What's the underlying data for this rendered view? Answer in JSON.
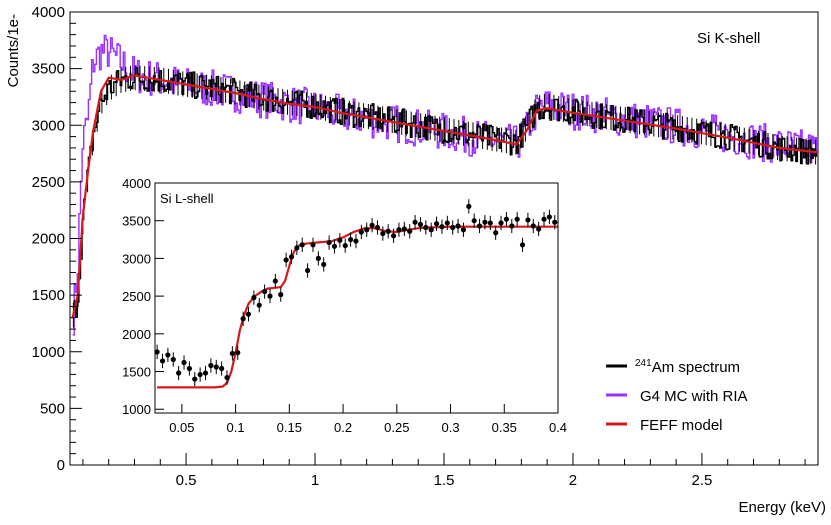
{
  "chart_data": [
    {
      "type": "line",
      "xlabel": "Energy (keV)",
      "ylabel": "Counts/1e-",
      "xlim": [
        0.05,
        2.95
      ],
      "ylim": [
        0,
        4000
      ],
      "x_ticks": [
        0.5,
        1,
        1.5,
        2,
        2.5
      ],
      "x_tick_labels": [
        "0.5",
        "1",
        "1.5",
        "2",
        "2.5"
      ],
      "y_ticks": [
        0,
        500,
        1000,
        1500,
        2000,
        2500,
        3000,
        3500,
        4000
      ],
      "y_tick_labels": [
        "0",
        "500",
        "1000",
        "1500",
        "2000",
        "2500",
        "3000",
        "3500",
        "4000"
      ],
      "annotation": "Si K-shell",
      "legend_position": "bottom-right",
      "legend": [
        {
          "label_sup": "241",
          "label": "Am spectrum",
          "color": "#000000"
        },
        {
          "label_sup": "",
          "label": "G4 MC with RIA",
          "color": "#9b30ff"
        },
        {
          "label_sup": "",
          "label": "FEFF model",
          "color": "#d7191c"
        }
      ],
      "series": [
        {
          "color": "#000000",
          "style": "histogram",
          "x": [
            0.06,
            0.08,
            0.1,
            0.12,
            0.14,
            0.17,
            0.2,
            0.25,
            0.3,
            0.4,
            0.5,
            0.6,
            0.7,
            0.8,
            0.9,
            1.0,
            1.1,
            1.2,
            1.3,
            1.4,
            1.5,
            1.6,
            1.7,
            1.78,
            1.82,
            1.86,
            1.9,
            2.0,
            2.2,
            2.4,
            2.6,
            2.8,
            2.95
          ],
          "values": [
            1300,
            1450,
            2150,
            2550,
            2900,
            3200,
            3320,
            3400,
            3420,
            3400,
            3360,
            3330,
            3290,
            3240,
            3200,
            3170,
            3120,
            3080,
            3040,
            3000,
            2960,
            2920,
            2880,
            2850,
            2980,
            3150,
            3170,
            3120,
            3050,
            2980,
            2900,
            2800,
            2760
          ]
        },
        {
          "color": "#9b30ff",
          "style": "histogram",
          "x": [
            0.06,
            0.08,
            0.1,
            0.12,
            0.14,
            0.17,
            0.2,
            0.25,
            0.3,
            0.4,
            0.5,
            0.6,
            0.7,
            0.8,
            0.9,
            1.0,
            1.1,
            1.2,
            1.3,
            1.4,
            1.5,
            1.6,
            1.7,
            1.78,
            1.82,
            1.86,
            1.9,
            2.0,
            2.2,
            2.4,
            2.6,
            2.8,
            2.95
          ],
          "values": [
            1250,
            1700,
            2850,
            3050,
            3550,
            3650,
            3650,
            3550,
            3450,
            3400,
            3350,
            3320,
            3280,
            3230,
            3190,
            3150,
            3100,
            3060,
            3020,
            2980,
            2940,
            2900,
            2860,
            2830,
            2950,
            3130,
            3170,
            3130,
            3060,
            2990,
            2910,
            2820,
            2780
          ]
        },
        {
          "color": "#d7191c",
          "style": "smooth",
          "x": [
            0.06,
            0.08,
            0.1,
            0.12,
            0.14,
            0.17,
            0.2,
            0.25,
            0.3,
            0.4,
            0.5,
            0.6,
            0.7,
            0.8,
            0.9,
            1.0,
            1.1,
            1.2,
            1.3,
            1.4,
            1.5,
            1.6,
            1.7,
            1.78,
            1.82,
            1.86,
            1.9,
            2.0,
            2.2,
            2.4,
            2.6,
            2.8,
            2.95
          ],
          "values": [
            1300,
            1500,
            2200,
            2600,
            2950,
            3300,
            3420,
            3400,
            3440,
            3400,
            3360,
            3320,
            3280,
            3230,
            3190,
            3160,
            3110,
            3070,
            3030,
            2990,
            2950,
            2910,
            2870,
            2830,
            2950,
            3130,
            3150,
            3110,
            3040,
            2970,
            2890,
            2800,
            2760
          ]
        }
      ]
    },
    {
      "type": "scatter",
      "inset": true,
      "annotation": "Si L-shell",
      "xlim": [
        0.025,
        0.4
      ],
      "ylim": [
        950,
        4000
      ],
      "x_ticks": [
        0.05,
        0.1,
        0.15,
        0.2,
        0.25,
        0.3,
        0.35,
        0.4
      ],
      "x_tick_labels": [
        "0.05",
        "0.1",
        "0.15",
        "0.2",
        "0.25",
        "0.3",
        "0.35",
        "0.4"
      ],
      "y_ticks": [
        1000,
        1500,
        2000,
        2500,
        3000,
        3500,
        4000
      ],
      "y_tick_labels": [
        "1000",
        "1500",
        "2000",
        "2500",
        "3000",
        "3500",
        "4000"
      ],
      "points": {
        "color": "#000000",
        "x": [
          0.027,
          0.032,
          0.037,
          0.042,
          0.047,
          0.052,
          0.057,
          0.062,
          0.067,
          0.072,
          0.077,
          0.082,
          0.087,
          0.092,
          0.097,
          0.102,
          0.107,
          0.112,
          0.117,
          0.122,
          0.127,
          0.132,
          0.137,
          0.142,
          0.147,
          0.152,
          0.157,
          0.162,
          0.167,
          0.172,
          0.177,
          0.182,
          0.187,
          0.192,
          0.197,
          0.202,
          0.207,
          0.212,
          0.217,
          0.222,
          0.227,
          0.232,
          0.237,
          0.242,
          0.247,
          0.252,
          0.257,
          0.262,
          0.267,
          0.272,
          0.277,
          0.282,
          0.287,
          0.292,
          0.297,
          0.302,
          0.307,
          0.312,
          0.317,
          0.322,
          0.327,
          0.332,
          0.337,
          0.342,
          0.347,
          0.352,
          0.357,
          0.362,
          0.367,
          0.372,
          0.377,
          0.382,
          0.387,
          0.392,
          0.397
        ],
        "y": [
          1760,
          1640,
          1720,
          1660,
          1480,
          1620,
          1540,
          1400,
          1460,
          1480,
          1580,
          1560,
          1540,
          1420,
          1740,
          1750,
          2200,
          2260,
          2480,
          2380,
          2560,
          2500,
          2700,
          2520,
          2980,
          3020,
          3140,
          3180,
          2840,
          3180,
          3000,
          2920,
          3210,
          3160,
          3240,
          3170,
          3250,
          3230,
          3350,
          3380,
          3440,
          3410,
          3330,
          3360,
          3300,
          3380,
          3390,
          3360,
          3480,
          3450,
          3410,
          3380,
          3460,
          3420,
          3470,
          3410,
          3430,
          3380,
          3690,
          3500,
          3430,
          3480,
          3470,
          3340,
          3470,
          3520,
          3430,
          3520,
          3180,
          3510,
          3430,
          3390,
          3520,
          3550,
          3480
        ],
        "err": 95
      },
      "model": {
        "color": "#d7191c",
        "x": [
          0.027,
          0.08,
          0.088,
          0.092,
          0.096,
          0.1,
          0.104,
          0.108,
          0.112,
          0.118,
          0.124,
          0.13,
          0.136,
          0.142,
          0.146,
          0.15,
          0.154,
          0.158,
          0.162,
          0.168,
          0.175,
          0.19,
          0.2,
          0.21,
          0.22,
          0.23,
          0.24,
          0.25,
          0.26,
          0.27,
          0.28,
          0.3,
          0.32,
          0.35,
          0.37,
          0.4
        ],
        "y": [
          1290,
          1290,
          1300,
          1350,
          1500,
          1750,
          2050,
          2250,
          2400,
          2500,
          2560,
          2600,
          2610,
          2620,
          2700,
          2900,
          3080,
          3160,
          3190,
          3200,
          3210,
          3230,
          3280,
          3350,
          3400,
          3400,
          3360,
          3350,
          3380,
          3400,
          3410,
          3420,
          3420,
          3420,
          3420,
          3420
        ]
      }
    }
  ]
}
